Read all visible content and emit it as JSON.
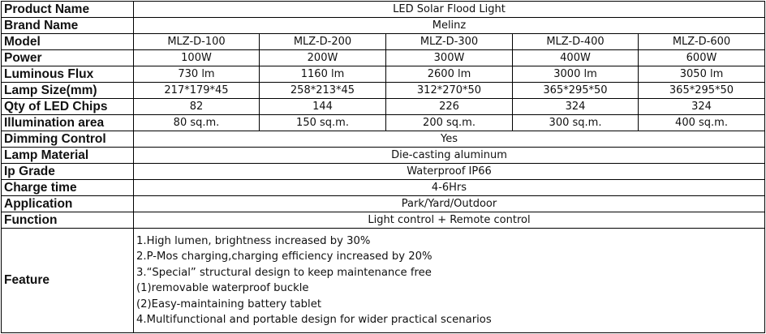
{
  "product_name": {
    "label": "Product Name",
    "value": "LED Solar Flood Light"
  },
  "brand_name": {
    "label": "Brand Name",
    "value": "Melinz"
  },
  "model": {
    "label": "Model",
    "values": [
      "MLZ-D-100",
      "MLZ-D-200",
      "MLZ-D-300",
      "MLZ-D-400",
      "MLZ-D-600"
    ]
  },
  "power": {
    "label": "Power",
    "values": [
      "100W",
      "200W",
      "300W",
      "400W",
      "600W"
    ]
  },
  "luminous_flux": {
    "label": "Luminous Flux",
    "values": [
      "730 lm",
      "1160 lm",
      "2600 lm",
      "3000 lm",
      "3050 lm"
    ]
  },
  "lamp_size": {
    "label": "Lamp Size(mm)",
    "values": [
      "217*179*45",
      "258*213*45",
      "312*270*50",
      "365*295*50",
      "365*295*50"
    ]
  },
  "qty_led_chips": {
    "label": "Qty of LED Chips",
    "values": [
      "82",
      "144",
      "226",
      "324",
      "324"
    ]
  },
  "illumination_area": {
    "label": "Illumination area",
    "values": [
      "80 sq.m.",
      "150 sq.m.",
      "200 sq.m.",
      "300 sq.m.",
      "400 sq.m."
    ]
  },
  "dimming_control": {
    "label": "Dimming Control",
    "value": "Yes"
  },
  "lamp_material": {
    "label": "Lamp Material",
    "value": "Die-casting aluminum"
  },
  "ip_grade": {
    "label": "Ip Grade",
    "value": "Waterproof IP66"
  },
  "charge_time": {
    "label": "Charge time",
    "value": "4-6Hrs"
  },
  "application": {
    "label": "Application",
    "value": "Park/Yard/Outdoor"
  },
  "function": {
    "label": "Function",
    "value": "Light control + Remote control"
  },
  "feature": {
    "label": "Feature",
    "lines": [
      "1.High lumen, brightness increased by 30%",
      "2.P-Mos charging,charging efficiency increased by 20%",
      "3.“Special” structural design to keep maintenance free",
      "(1)removable waterproof buckle",
      "(2)Easy-maintaining battery tablet",
      "4.Multifunctional and portable design for wider practical scenarios"
    ]
  }
}
